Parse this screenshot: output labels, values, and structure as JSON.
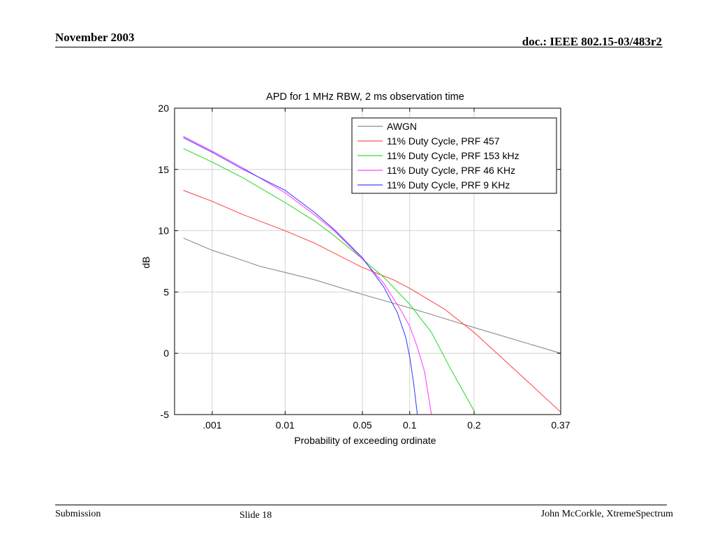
{
  "header": {
    "date": "November 2003",
    "doc": "doc.: IEEE 802.15-03/483r2"
  },
  "footer": {
    "left": "Submission",
    "center": "Slide 18",
    "right": "John McCorkle, XtremeSpectrum"
  },
  "colors": {
    "awgn": "#8c8c8c",
    "prf457": "#ff5050",
    "prf153": "#33dd33",
    "prf46": "#ff44ff",
    "prf9": "#4444ff"
  },
  "chart_data": {
    "type": "line",
    "title": "APD for 1 MHz RBW, 2 ms observation time",
    "xlabel": "Probability of exceeding ordinate",
    "ylabel": "dB",
    "x_scale": "rayleigh",
    "x_ticks": [
      ".001",
      "0.01",
      "0.05",
      "0.1",
      "0.2",
      "0.37"
    ],
    "x_tick_values": [
      0.001,
      0.01,
      0.05,
      0.1,
      0.2,
      0.37
    ],
    "xlim": [
      0.0002,
      0.37
    ],
    "ylim": [
      -5,
      20
    ],
    "y_ticks": [
      -5,
      0,
      5,
      10,
      15,
      20
    ],
    "grid": true,
    "legend_position": "top-right",
    "series": [
      {
        "name": "AWGN",
        "color": "#8c8c8c",
        "x": [
          0.0003,
          0.0005,
          0.001,
          0.002,
          0.005,
          0.01,
          0.02,
          0.05,
          0.1,
          0.2,
          0.37
        ],
        "y": [
          9.4,
          9.0,
          8.4,
          7.9,
          7.1,
          6.6,
          6.0,
          4.8,
          3.7,
          2.1,
          0.0
        ]
      },
      {
        "name": "11% Duty Cycle, PRF 457",
        "color": "#ff5050",
        "x": [
          0.0003,
          0.001,
          0.003,
          0.01,
          0.02,
          0.05,
          0.08,
          0.1,
          0.15,
          0.2,
          0.3,
          0.37
        ],
        "y": [
          13.3,
          12.4,
          11.3,
          10.0,
          9.0,
          7.0,
          6.0,
          5.3,
          3.6,
          1.7,
          -2.2,
          -4.8
        ]
      },
      {
        "name": "11% Duty Cycle, PRF 153 kHz",
        "color": "#33dd33",
        "x": [
          0.0003,
          0.001,
          0.003,
          0.01,
          0.02,
          0.03,
          0.05,
          0.07,
          0.1,
          0.13,
          0.16,
          0.2
        ],
        "y": [
          16.7,
          15.6,
          14.3,
          12.3,
          10.8,
          9.6,
          7.7,
          6.2,
          4.0,
          1.7,
          -1.3,
          -4.7
        ]
      },
      {
        "name": "11%  Duty Cycle, PRF 46 KHz",
        "color": "#ff44ff",
        "x": [
          0.0003,
          0.001,
          0.003,
          0.01,
          0.02,
          0.03,
          0.05,
          0.07,
          0.09,
          0.1,
          0.11,
          0.12,
          0.13
        ],
        "y": [
          17.7,
          16.5,
          15.1,
          13.1,
          11.3,
          10.0,
          7.7,
          5.7,
          3.4,
          2.2,
          0.5,
          -1.5,
          -5.0
        ]
      },
      {
        "name": "11%  Duty Cycle, PRF 9 KHz",
        "color": "#4444ff",
        "x": [
          0.0003,
          0.001,
          0.003,
          0.01,
          0.02,
          0.03,
          0.05,
          0.07,
          0.085,
          0.095,
          0.1,
          0.105,
          0.11
        ],
        "y": [
          17.6,
          16.4,
          15.0,
          13.3,
          11.5,
          10.1,
          7.8,
          5.4,
          3.3,
          1.3,
          -0.3,
          -2.4,
          -5.0
        ]
      }
    ]
  }
}
